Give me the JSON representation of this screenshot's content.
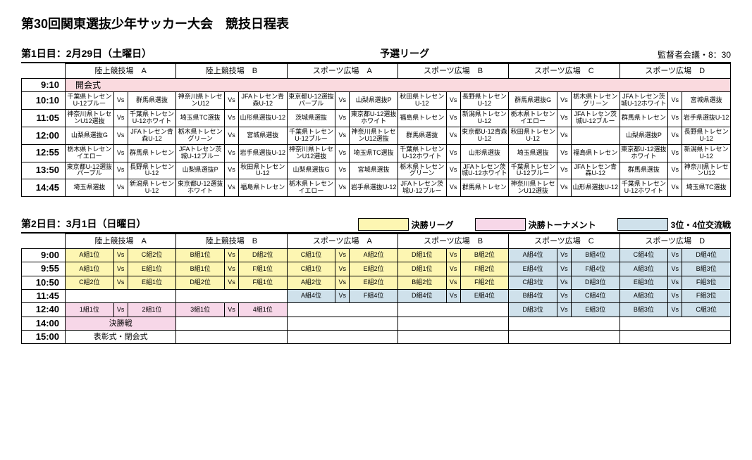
{
  "title": "第30回関東選抜少年サッカー大会　競技日程表",
  "venues": [
    "陸上競技場　A",
    "陸上競技場　B",
    "スポーツ広場　A",
    "スポーツ広場　B",
    "スポーツ広場　C",
    "スポーツ広場　D"
  ],
  "colors": {
    "pink": "#fadadf",
    "yellow": "#fdf6b2",
    "lpink": "#f7d7e8",
    "lblue": "#cfe1eb"
  },
  "day1": {
    "label": "第1日目：2月29日（土曜日）",
    "subtitle": "予選リーグ",
    "meeting": "監督者会議・8：30",
    "rows": [
      {
        "time": "9:10",
        "type": "opening",
        "text": "開会式",
        "color": "pink"
      },
      {
        "time": "10:10",
        "c": [
          [
            "千葉県トレセンU-12ブルー",
            "群馬県選抜"
          ],
          [
            "神奈川県トレセンU12",
            "JFAトレセン青森U-12"
          ],
          [
            "東京都U-12選抜パープル",
            "山梨県選抜P"
          ],
          [
            "秋田県トレセンU-12",
            "長野県トレセンU-12"
          ],
          [
            "群馬県選抜G",
            "栃木県トレセングリーン"
          ],
          [
            "JFAトレセン茨城U-12ホワイト",
            "宮城県選抜"
          ]
        ]
      },
      {
        "time": "11:05",
        "c": [
          [
            "神奈川県トレセンU12選抜",
            "千葉県トレセンU-12ホワイト"
          ],
          [
            "埼玉県TC選抜",
            "山形県選抜U-12"
          ],
          [
            "茨城県選抜",
            "東京都U-12選抜ホワイト"
          ],
          [
            "福島県トレセン",
            "新潟県トレセンU-12"
          ],
          [
            "栃木県トレセンイエロー",
            "JFAトレセン茨城U-12ブルー"
          ],
          [
            "群馬県トレセン",
            "岩手県選抜U-12"
          ]
        ]
      },
      {
        "time": "12:00",
        "c": [
          [
            "山梨県選抜G",
            "JFAトレセン青森U-12"
          ],
          [
            "栃木県トレセングリーン",
            "宮城県選抜"
          ],
          [
            "千葉県トレセンU-12ブルー",
            "神奈川県トレセンU12選抜"
          ],
          [
            "群馬県選抜",
            "東京都U-12青森U-12"
          ],
          [
            "秋田県トレセンU-12",
            ""
          ],
          [
            "山梨県選抜P",
            "長野県トレセンU-12"
          ]
        ]
      },
      {
        "time": "12:55",
        "c": [
          [
            "栃木県トレセンイエロー",
            "群馬県トレセン"
          ],
          [
            "JFAトレセン茨城U-12ブルー",
            "岩手県選抜U-12"
          ],
          [
            "神奈川県トレセンU12選抜",
            "埼玉県TC選抜"
          ],
          [
            "千葉県トレセンU-12ホワイト",
            "山形県選抜"
          ],
          [
            "埼玉県選抜",
            "福島県トレセン"
          ],
          [
            "東京都U-12選抜ホワイト",
            "新潟県トレセンU-12"
          ]
        ]
      },
      {
        "time": "13:50",
        "c": [
          [
            "東京都U-12選抜パープル",
            "長野県トレセンU-12"
          ],
          [
            "山梨県選抜P",
            "秋田県トレセンU-12"
          ],
          [
            "山梨県選抜G",
            "宮城県選抜"
          ],
          [
            "栃木県トレセングリーン",
            "JFAトレセン茨城U-12ホワイト"
          ],
          [
            "千葉県トレセンU-12ブルー",
            "JFAトレセン青森U-12"
          ],
          [
            "群馬県選抜",
            "神奈川県トレセンU12"
          ]
        ]
      },
      {
        "time": "14:45",
        "c": [
          [
            "埼玉県選抜",
            "新潟県トレセンU-12"
          ],
          [
            "東京都U-12選抜ホワイト",
            "福島県トレセン"
          ],
          [
            "栃木県トレセンイエロー",
            "岩手県選抜U-12"
          ],
          [
            "JFAトレセン茨城U-12ブルー",
            "群馬県トレセン"
          ],
          [
            "神奈川県トレセンU12選抜",
            "山形県選抜U-12"
          ],
          [
            "千葉県トレセンU-12ホワイト",
            "埼玉県TC選抜"
          ]
        ]
      }
    ]
  },
  "day2": {
    "label": "第2日目：3月1日（日曜日）",
    "legends": [
      {
        "color": "yellow",
        "text": "決勝リーグ"
      },
      {
        "color": "lpink",
        "text": "決勝トーナメント"
      },
      {
        "color": "lblue",
        "text": "3位・4位交流戦"
      }
    ],
    "rows": [
      {
        "time": "9:00",
        "c": [
          [
            "A組1位",
            "C組2位",
            "yellow"
          ],
          [
            "B組1位",
            "D組2位",
            "yellow"
          ],
          [
            "C組1位",
            "A組2位",
            "yellow"
          ],
          [
            "D組1位",
            "B組2位",
            "yellow"
          ],
          [
            "A組4位",
            "B組4位",
            "lblue"
          ],
          [
            "C組4位",
            "D組4位",
            "lblue"
          ]
        ]
      },
      {
        "time": "9:55",
        "c": [
          [
            "A組1位",
            "E組1位",
            "yellow"
          ],
          [
            "B組1位",
            "F組1位",
            "yellow"
          ],
          [
            "C組1位",
            "E組2位",
            "yellow"
          ],
          [
            "D組1位",
            "F組2位",
            "yellow"
          ],
          [
            "E組4位",
            "F組4位",
            "lblue"
          ],
          [
            "A組3位",
            "B組3位",
            "lblue"
          ]
        ]
      },
      {
        "time": "10:50",
        "c": [
          [
            "C組2位",
            "E組1位",
            "yellow"
          ],
          [
            "D組2位",
            "F組1位",
            "yellow"
          ],
          [
            "A組2位",
            "E組2位",
            "yellow"
          ],
          [
            "B組2位",
            "F組2位",
            "yellow"
          ],
          [
            "C組3位",
            "D組3位",
            "lblue"
          ],
          [
            "E組3位",
            "F組3位",
            "lblue"
          ]
        ]
      },
      {
        "time": "11:45",
        "c": [
          [
            "",
            "",
            null
          ],
          [
            "",
            "",
            null
          ],
          [
            "A組4位",
            "F組4位",
            "lblue"
          ],
          [
            "D組4位",
            "E組4位",
            "lblue"
          ],
          [
            "B組4位",
            "C組4位",
            "lblue"
          ],
          [
            "A組3位",
            "F組3位",
            "lblue"
          ]
        ]
      },
      {
        "time": "12:40",
        "c": [
          [
            "1組1位",
            "2組1位",
            "lpink"
          ],
          [
            "3組1位",
            "4組1位",
            "lpink"
          ],
          [
            "",
            "",
            null
          ],
          [
            "",
            "",
            null
          ],
          [
            "D組3位",
            "E組3位",
            "lblue"
          ],
          [
            "B組3位",
            "C組3位",
            "lblue"
          ]
        ]
      },
      {
        "time": "14:00",
        "type": "span",
        "spantext": "決勝戦",
        "spancols": 1,
        "color": "lpink"
      },
      {
        "time": "15:00",
        "type": "span",
        "spantext": "表彰式・閉会式",
        "spancols": 1,
        "color": null
      }
    ]
  }
}
